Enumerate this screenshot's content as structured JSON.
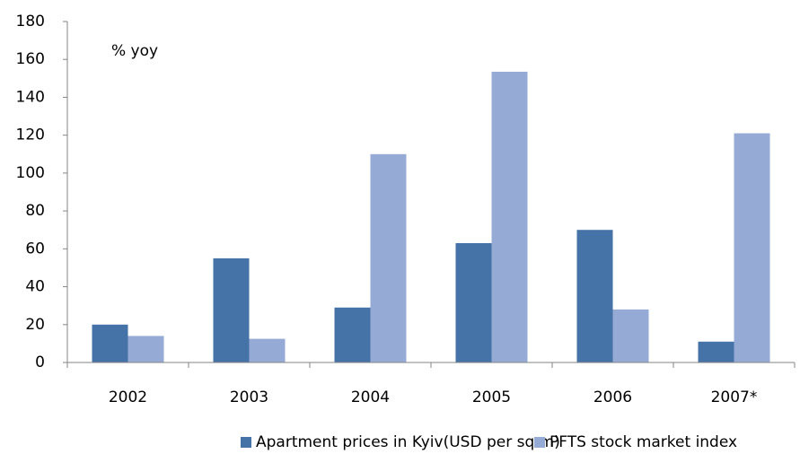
{
  "chart_data": {
    "type": "bar",
    "annotation": "% yoy",
    "categories": [
      "2002",
      "2003",
      "2004",
      "2005",
      "2006",
      "2007*"
    ],
    "series": [
      {
        "name": "Apartment prices in Kyiv(USD per sq m)",
        "color": "#4572a7",
        "values": [
          20,
          55,
          29,
          63,
          70,
          11
        ]
      },
      {
        "name": "PFTS stock market index",
        "color": "#95abd5",
        "values": [
          14,
          12.5,
          110,
          153.5,
          28,
          121
        ]
      }
    ],
    "ylim": [
      0,
      180
    ],
    "yticks": [
      0,
      20,
      40,
      60,
      80,
      100,
      120,
      140,
      160,
      180
    ],
    "grid": false,
    "legend": "bottom"
  }
}
